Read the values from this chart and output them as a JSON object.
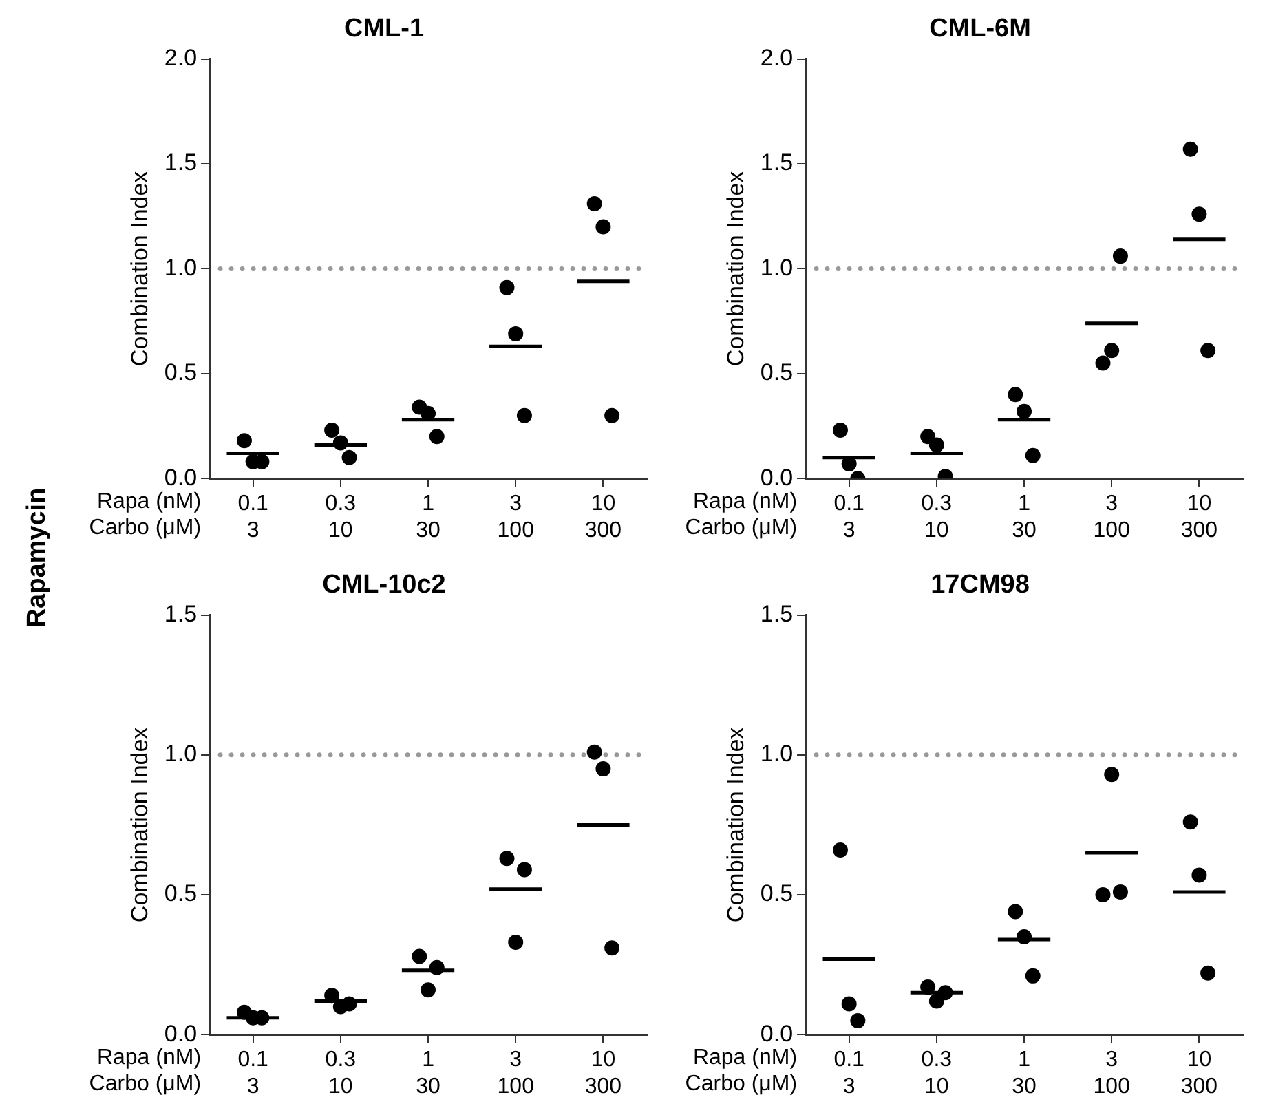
{
  "chart_data": [
    {
      "type": "scatter",
      "title": "CML-1",
      "ylabel": "Combination Index",
      "xlabel": "Rapa (nM)\nCarbo (μM)",
      "annotations": [
        "Rapamycin"
      ],
      "categories": [
        "0.1\n3",
        "0.3\n10",
        "1\n30",
        "3\n100",
        "10\n300"
      ],
      "ylim": [
        0,
        2
      ],
      "yticks": [
        {
          "value": 0,
          "label": "0.0"
        },
        {
          "value": 0.5,
          "label": "0.5"
        },
        {
          "value": 1,
          "label": "1.0"
        },
        {
          "value": 1.5,
          "label": "1.5"
        },
        {
          "value": 2,
          "label": "2.0"
        }
      ],
      "grid": false,
      "legend": false,
      "ref_lines": [
        {
          "axis": "y",
          "value": 1,
          "color": "#999999",
          "line_style": "dotted"
        }
      ],
      "series": [
        {
          "type": "scatter",
          "marker": "circle",
          "color": "#000000",
          "x": [
            "0.1\n3",
            "0.1\n3",
            "0.1\n3",
            "0.3\n10",
            "0.3\n10",
            "0.3\n10",
            "1\n30",
            "1\n30",
            "1\n30",
            "3\n100",
            "3\n100",
            "3\n100",
            "10\n300",
            "10\n300",
            "10\n300"
          ],
          "values": [
            0.18,
            0.08,
            0.08,
            0.23,
            0.17,
            0.1,
            0.34,
            0.31,
            0.2,
            0.91,
            0.69,
            0.3,
            1.31,
            1.2,
            0.3
          ]
        },
        {
          "type": "box",
          "color": "#000000",
          "boxes": [
            {
              "low": 0.12,
              "q1": 0.12,
              "median": 0.12,
              "q3": 0.12,
              "high": 0.12
            },
            {
              "low": 0.16,
              "q1": 0.16,
              "median": 0.16,
              "q3": 0.16,
              "high": 0.16
            },
            {
              "low": 0.28,
              "q1": 0.28,
              "median": 0.28,
              "q3": 0.28,
              "high": 0.28
            },
            {
              "low": 0.63,
              "q1": 0.63,
              "median": 0.63,
              "q3": 0.63,
              "high": 0.63
            },
            {
              "low": 0.94,
              "q1": 0.94,
              "median": 0.94,
              "q3": 0.94,
              "high": 0.94
            }
          ]
        }
      ]
    },
    {
      "type": "scatter",
      "title": "CML-6M",
      "ylabel": "Combination Index",
      "xlabel": "Rapa (nM)\nCarbo (μM)",
      "categories": [
        "0.1\n3",
        "0.3\n10",
        "1\n30",
        "3\n100",
        "10\n300"
      ],
      "ylim": [
        0,
        2
      ],
      "yticks": [
        {
          "value": 0,
          "label": "0.0"
        },
        {
          "value": 0.5,
          "label": "0.5"
        },
        {
          "value": 1,
          "label": "1.0"
        },
        {
          "value": 1.5,
          "label": "1.5"
        },
        {
          "value": 2,
          "label": "2.0"
        }
      ],
      "grid": false,
      "legend": false,
      "ref_lines": [
        {
          "axis": "y",
          "value": 1,
          "color": "#999999",
          "line_style": "dotted"
        }
      ],
      "series": [
        {
          "type": "scatter",
          "marker": "circle",
          "color": "#000000",
          "x": [
            "0.1\n3",
            "0.1\n3",
            "0.1\n3",
            "0.3\n10",
            "0.3\n10",
            "0.3\n10",
            "1\n30",
            "1\n30",
            "1\n30",
            "3\n100",
            "3\n100",
            "3\n100",
            "10\n300",
            "10\n300",
            "10\n300"
          ],
          "values": [
            0.23,
            0.07,
            0.0,
            0.2,
            0.16,
            0.01,
            0.4,
            0.32,
            0.11,
            0.55,
            0.61,
            1.06,
            1.57,
            1.26,
            0.61
          ]
        },
        {
          "type": "box",
          "color": "#000000",
          "boxes": [
            {
              "low": 0.1,
              "q1": 0.1,
              "median": 0.1,
              "q3": 0.1,
              "high": 0.1
            },
            {
              "low": 0.12,
              "q1": 0.12,
              "median": 0.12,
              "q3": 0.12,
              "high": 0.12
            },
            {
              "low": 0.28,
              "q1": 0.28,
              "median": 0.28,
              "q3": 0.28,
              "high": 0.28
            },
            {
              "low": 0.74,
              "q1": 0.74,
              "median": 0.74,
              "q3": 0.74,
              "high": 0.74
            },
            {
              "low": 1.14,
              "q1": 1.14,
              "median": 1.14,
              "q3": 1.14,
              "high": 1.14
            }
          ]
        }
      ]
    },
    {
      "type": "scatter",
      "title": "CML-10c2",
      "ylabel": "Combination Index",
      "xlabel": "Rapa (nM)\nCarbo (μM)",
      "categories": [
        "0.1\n3",
        "0.3\n10",
        "1\n30",
        "3\n100",
        "10\n300"
      ],
      "ylim": [
        0,
        1.5
      ],
      "yticks": [
        {
          "value": 0,
          "label": "0.0"
        },
        {
          "value": 0.5,
          "label": "0.5"
        },
        {
          "value": 1,
          "label": "1.0"
        },
        {
          "value": 1.5,
          "label": "1.5"
        }
      ],
      "grid": false,
      "legend": false,
      "ref_lines": [
        {
          "axis": "y",
          "value": 1,
          "color": "#999999",
          "line_style": "dotted"
        }
      ],
      "series": [
        {
          "type": "scatter",
          "marker": "circle",
          "color": "#000000",
          "x": [
            "0.1\n3",
            "0.1\n3",
            "0.1\n3",
            "0.3\n10",
            "0.3\n10",
            "0.3\n10",
            "1\n30",
            "1\n30",
            "1\n30",
            "3\n100",
            "3\n100",
            "3\n100",
            "10\n300",
            "10\n300",
            "10\n300"
          ],
          "values": [
            0.08,
            0.06,
            0.06,
            0.14,
            0.1,
            0.11,
            0.28,
            0.16,
            0.24,
            0.63,
            0.33,
            0.59,
            1.01,
            0.95,
            0.31
          ]
        },
        {
          "type": "box",
          "color": "#000000",
          "boxes": [
            {
              "low": 0.06,
              "q1": 0.06,
              "median": 0.06,
              "q3": 0.06,
              "high": 0.06
            },
            {
              "low": 0.12,
              "q1": 0.12,
              "median": 0.12,
              "q3": 0.12,
              "high": 0.12
            },
            {
              "low": 0.23,
              "q1": 0.23,
              "median": 0.23,
              "q3": 0.23,
              "high": 0.23
            },
            {
              "low": 0.52,
              "q1": 0.52,
              "median": 0.52,
              "q3": 0.52,
              "high": 0.52
            },
            {
              "low": 0.75,
              "q1": 0.75,
              "median": 0.75,
              "q3": 0.75,
              "high": 0.75
            }
          ]
        }
      ]
    },
    {
      "type": "scatter",
      "title": "17CM98",
      "ylabel": "Combination Index",
      "xlabel": "Rapa (nM)\nCarbo (μM)",
      "categories": [
        "0.1\n3",
        "0.3\n10",
        "1\n30",
        "3\n100",
        "10\n300"
      ],
      "ylim": [
        0,
        1.5
      ],
      "yticks": [
        {
          "value": 0,
          "label": "0.0"
        },
        {
          "value": 0.5,
          "label": "0.5"
        },
        {
          "value": 1,
          "label": "1.0"
        },
        {
          "value": 1.5,
          "label": "1.5"
        }
      ],
      "grid": false,
      "legend": false,
      "ref_lines": [
        {
          "axis": "y",
          "value": 1,
          "color": "#999999",
          "line_style": "dotted"
        }
      ],
      "series": [
        {
          "type": "scatter",
          "marker": "circle",
          "color": "#000000",
          "x": [
            "0.1\n3",
            "0.1\n3",
            "0.1\n3",
            "0.3\n10",
            "0.3\n10",
            "0.3\n10",
            "1\n30",
            "1\n30",
            "1\n30",
            "3\n100",
            "3\n100",
            "3\n100",
            "10\n300",
            "10\n300",
            "10\n300"
          ],
          "values": [
            0.66,
            0.11,
            0.05,
            0.17,
            0.12,
            0.15,
            0.44,
            0.35,
            0.21,
            0.5,
            0.93,
            0.51,
            0.76,
            0.57,
            0.22
          ]
        },
        {
          "type": "box",
          "color": "#000000",
          "boxes": [
            {
              "low": 0.27,
              "q1": 0.27,
              "median": 0.27,
              "q3": 0.27,
              "high": 0.27
            },
            {
              "low": 0.15,
              "q1": 0.15,
              "median": 0.15,
              "q3": 0.15,
              "high": 0.15
            },
            {
              "low": 0.34,
              "q1": 0.34,
              "median": 0.34,
              "q3": 0.34,
              "high": 0.34
            },
            {
              "low": 0.65,
              "q1": 0.65,
              "median": 0.65,
              "q3": 0.65,
              "high": 0.65
            },
            {
              "low": 0.51,
              "q1": 0.51,
              "median": 0.51,
              "q3": 0.51,
              "high": 0.51
            }
          ]
        }
      ]
    }
  ]
}
